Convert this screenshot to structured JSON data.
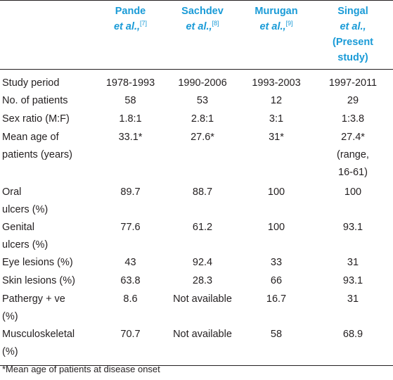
{
  "table": {
    "columns": [
      {
        "name": "Pande",
        "etal": "et al.,",
        "ref": "[7]"
      },
      {
        "name": "Sachdev",
        "etal": "et al.,",
        "ref": "[8]"
      },
      {
        "name": "Murugan",
        "etal": "et al.,",
        "ref": "[9]"
      },
      {
        "name": "Singal",
        "etal": "et al.,",
        "note": "(Present study)"
      }
    ],
    "rows": [
      {
        "label": "Study period",
        "cells": [
          "1978-1993",
          "1990-2006",
          "1993-2003",
          "1997-2011"
        ]
      },
      {
        "label": "No. of patients",
        "cells": [
          "58",
          "53",
          "12",
          "29"
        ]
      },
      {
        "label": "Sex ratio (M:F)",
        "cells": [
          "1.8:1",
          "2.8:1",
          "3:1",
          "1:3.8"
        ]
      },
      {
        "label": "Mean age of\npatients (years)",
        "cells": [
          "33.1*",
          "27.6*",
          "31*",
          "27.4*\n(range,\n16-61)"
        ]
      },
      {
        "label": "Oral\nulcers (%)",
        "cells": [
          "89.7",
          "88.7",
          "100",
          "100"
        ]
      },
      {
        "label": "Genital\nulcers (%)",
        "cells": [
          "77.6",
          "61.2",
          "100",
          "93.1"
        ]
      },
      {
        "label": "Eye lesions (%)",
        "cells": [
          "43",
          "92.4",
          "33",
          "31"
        ]
      },
      {
        "label": "Skin lesions (%)",
        "cells": [
          "63.8",
          "28.3",
          "66",
          "93.1"
        ]
      },
      {
        "label": "Pathergy + ve\n(%)",
        "cells": [
          "8.6",
          "Not available",
          "16.7",
          "31"
        ]
      },
      {
        "label": "Musculoskeletal\n(%)",
        "cells": [
          "70.7",
          "Not available",
          "58",
          "68.9"
        ]
      }
    ]
  },
  "footnote": "*Mean age of patients at disease onset"
}
